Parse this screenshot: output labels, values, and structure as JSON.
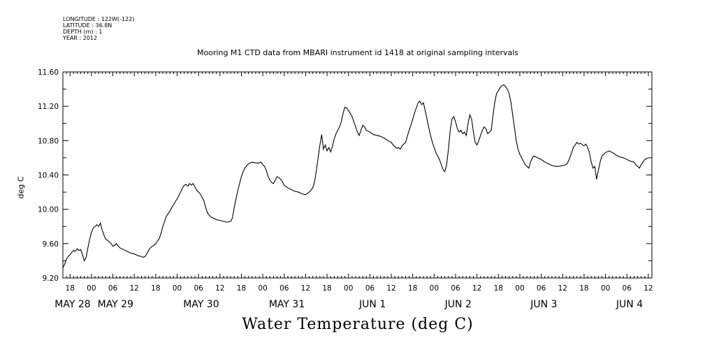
{
  "header": {
    "longitude": "LONGITUDE : 122W(-122)",
    "latitude": "LATITUDE : 36.8N",
    "depth": "DEPTH (m) : 1",
    "year": "YEAR : 2012"
  },
  "chart_data": {
    "type": "line",
    "title": "Mooring M1 CTD data from MBARI instrument id 1418 at original sampling intervals",
    "ylabel": "deg C",
    "xlabel": "Water Temperature (deg C)",
    "ylim": [
      9.2,
      11.6
    ],
    "xlim_hours": [
      0,
      165
    ],
    "yticks": [
      "9.20",
      "9.60",
      "10.00",
      "10.40",
      "10.80",
      "11.20",
      "11.60"
    ],
    "xticks": [
      {
        "h": 2,
        "label": "18"
      },
      {
        "h": 8,
        "label": "00"
      },
      {
        "h": 14,
        "label": "06"
      },
      {
        "h": 20,
        "label": "12"
      },
      {
        "h": 26,
        "label": "18"
      },
      {
        "h": 32,
        "label": "00"
      },
      {
        "h": 38,
        "label": "06"
      },
      {
        "h": 44,
        "label": "12"
      },
      {
        "h": 50,
        "label": "18"
      },
      {
        "h": 56,
        "label": "00"
      },
      {
        "h": 62,
        "label": "06"
      },
      {
        "h": 68,
        "label": "12"
      },
      {
        "h": 74,
        "label": "18"
      },
      {
        "h": 80,
        "label": "00"
      },
      {
        "h": 86,
        "label": "06"
      },
      {
        "h": 92,
        "label": "12"
      },
      {
        "h": 98,
        "label": "18"
      },
      {
        "h": 104,
        "label": "00"
      },
      {
        "h": 110,
        "label": "06"
      },
      {
        "h": 116,
        "label": "12"
      },
      {
        "h": 122,
        "label": "18"
      },
      {
        "h": 128,
        "label": "00"
      },
      {
        "h": 134,
        "label": "06"
      },
      {
        "h": 140,
        "label": "12"
      },
      {
        "h": 146,
        "label": "18"
      },
      {
        "h": 152,
        "label": "00"
      },
      {
        "h": 158,
        "label": "06"
      },
      {
        "h": 164,
        "label": "12"
      }
    ],
    "date_labels": [
      {
        "h": 0,
        "label": "MAY 28"
      },
      {
        "h": 12,
        "label": "MAY 29"
      },
      {
        "h": 36,
        "label": "MAY 30"
      },
      {
        "h": 60,
        "label": "MAY 31"
      },
      {
        "h": 84,
        "label": "JUN  1"
      },
      {
        "h": 108,
        "label": "JUN  2"
      },
      {
        "h": 132,
        "label": "JUN  3"
      },
      {
        "h": 156,
        "label": "JUN  4"
      }
    ],
    "series": [
      {
        "points": [
          [
            0,
            9.32
          ],
          [
            0.5,
            9.36
          ],
          [
            1,
            9.42
          ],
          [
            1.5,
            9.45
          ],
          [
            2,
            9.47
          ],
          [
            2.5,
            9.5
          ],
          [
            3,
            9.52
          ],
          [
            3.5,
            9.51
          ],
          [
            4,
            9.54
          ],
          [
            4.5,
            9.52
          ],
          [
            5,
            9.53
          ],
          [
            5.5,
            9.47
          ],
          [
            6,
            9.4
          ],
          [
            6.5,
            9.44
          ],
          [
            7,
            9.55
          ],
          [
            7.5,
            9.65
          ],
          [
            8,
            9.73
          ],
          [
            8.5,
            9.78
          ],
          [
            9,
            9.8
          ],
          [
            9.5,
            9.82
          ],
          [
            10,
            9.8
          ],
          [
            10.5,
            9.84
          ],
          [
            11,
            9.76
          ],
          [
            11.5,
            9.7
          ],
          [
            12,
            9.65
          ],
          [
            12.5,
            9.64
          ],
          [
            13,
            9.62
          ],
          [
            13.5,
            9.6
          ],
          [
            14,
            9.57
          ],
          [
            14.5,
            9.58
          ],
          [
            15,
            9.6
          ],
          [
            15.5,
            9.57
          ],
          [
            16,
            9.55
          ],
          [
            17,
            9.53
          ],
          [
            18,
            9.51
          ],
          [
            19,
            9.49
          ],
          [
            20,
            9.48
          ],
          [
            21,
            9.46
          ],
          [
            22,
            9.45
          ],
          [
            22.5,
            9.44
          ],
          [
            23,
            9.45
          ],
          [
            23.5,
            9.48
          ],
          [
            24,
            9.52
          ],
          [
            24.5,
            9.55
          ],
          [
            25,
            9.57
          ],
          [
            25.5,
            9.58
          ],
          [
            26,
            9.6
          ],
          [
            26.5,
            9.63
          ],
          [
            27,
            9.66
          ],
          [
            27.5,
            9.72
          ],
          [
            28,
            9.8
          ],
          [
            28.5,
            9.86
          ],
          [
            29,
            9.92
          ],
          [
            29.5,
            9.95
          ],
          [
            30,
            9.98
          ],
          [
            30.5,
            10.02
          ],
          [
            31,
            10.05
          ],
          [
            31.5,
            10.09
          ],
          [
            32,
            10.12
          ],
          [
            32.5,
            10.16
          ],
          [
            33,
            10.2
          ],
          [
            33.5,
            10.25
          ],
          [
            34,
            10.28
          ],
          [
            34.5,
            10.29
          ],
          [
            35,
            10.27
          ],
          [
            35.5,
            10.3
          ],
          [
            36,
            10.28
          ],
          [
            36.5,
            10.3
          ],
          [
            37,
            10.26
          ],
          [
            37.5,
            10.22
          ],
          [
            38,
            10.2
          ],
          [
            38.5,
            10.18
          ],
          [
            39,
            10.14
          ],
          [
            39.5,
            10.1
          ],
          [
            40,
            10.02
          ],
          [
            40.5,
            9.96
          ],
          [
            41,
            9.93
          ],
          [
            41.5,
            9.91
          ],
          [
            42,
            9.9
          ],
          [
            43,
            9.88
          ],
          [
            44,
            9.87
          ],
          [
            45,
            9.86
          ],
          [
            46,
            9.85
          ],
          [
            47,
            9.86
          ],
          [
            47.5,
            9.9
          ],
          [
            48,
            10.02
          ],
          [
            48.5,
            10.12
          ],
          [
            49,
            10.22
          ],
          [
            49.5,
            10.3
          ],
          [
            50,
            10.38
          ],
          [
            50.5,
            10.44
          ],
          [
            51,
            10.48
          ],
          [
            51.5,
            10.51
          ],
          [
            52,
            10.53
          ],
          [
            52.5,
            10.54
          ],
          [
            53,
            10.55
          ],
          [
            54,
            10.54
          ],
          [
            55,
            10.54
          ],
          [
            55.5,
            10.55
          ],
          [
            56,
            10.52
          ],
          [
            56.5,
            10.5
          ],
          [
            57,
            10.45
          ],
          [
            57.5,
            10.38
          ],
          [
            58,
            10.34
          ],
          [
            58.5,
            10.31
          ],
          [
            59,
            10.3
          ],
          [
            59.5,
            10.34
          ],
          [
            60,
            10.38
          ],
          [
            60.5,
            10.37
          ],
          [
            61,
            10.35
          ],
          [
            61.5,
            10.32
          ],
          [
            62,
            10.28
          ],
          [
            63,
            10.25
          ],
          [
            64,
            10.23
          ],
          [
            65,
            10.21
          ],
          [
            66,
            10.2
          ],
          [
            67,
            10.18
          ],
          [
            68,
            10.17
          ],
          [
            69,
            10.2
          ],
          [
            70,
            10.25
          ],
          [
            70.5,
            10.32
          ],
          [
            71,
            10.45
          ],
          [
            71.5,
            10.6
          ],
          [
            72,
            10.75
          ],
          [
            72.5,
            10.87
          ],
          [
            73,
            10.7
          ],
          [
            73.5,
            10.75
          ],
          [
            74,
            10.68
          ],
          [
            74.5,
            10.72
          ],
          [
            75,
            10.67
          ],
          [
            75.5,
            10.73
          ],
          [
            76,
            10.82
          ],
          [
            76.5,
            10.88
          ],
          [
            77,
            10.92
          ],
          [
            77.5,
            10.96
          ],
          [
            78,
            11.02
          ],
          [
            78.5,
            11.12
          ],
          [
            79,
            11.19
          ],
          [
            79.5,
            11.18
          ],
          [
            80,
            11.15
          ],
          [
            80.5,
            11.12
          ],
          [
            81,
            11.08
          ],
          [
            81.5,
            11.02
          ],
          [
            82,
            10.96
          ],
          [
            82.5,
            10.9
          ],
          [
            83,
            10.86
          ],
          [
            83.5,
            10.92
          ],
          [
            84,
            10.98
          ],
          [
            84.5,
            10.96
          ],
          [
            85,
            10.92
          ],
          [
            86,
            10.9
          ],
          [
            87,
            10.87
          ],
          [
            88,
            10.86
          ],
          [
            89,
            10.85
          ],
          [
            90,
            10.83
          ],
          [
            91,
            10.8
          ],
          [
            92,
            10.78
          ],
          [
            92.5,
            10.75
          ],
          [
            93,
            10.73
          ],
          [
            93.5,
            10.71
          ],
          [
            94,
            10.72
          ],
          [
            94.5,
            10.7
          ],
          [
            95,
            10.74
          ],
          [
            96,
            10.78
          ],
          [
            96.5,
            10.85
          ],
          [
            97,
            10.92
          ],
          [
            97.5,
            10.98
          ],
          [
            98,
            11.05
          ],
          [
            98.5,
            11.12
          ],
          [
            99,
            11.18
          ],
          [
            99.5,
            11.24
          ],
          [
            100,
            11.26
          ],
          [
            100.5,
            11.22
          ],
          [
            101,
            11.24
          ],
          [
            101.5,
            11.15
          ],
          [
            102,
            11.05
          ],
          [
            102.5,
            10.95
          ],
          [
            103,
            10.86
          ],
          [
            103.5,
            10.78
          ],
          [
            104,
            10.72
          ],
          [
            104.5,
            10.66
          ],
          [
            105,
            10.62
          ],
          [
            105.5,
            10.58
          ],
          [
            106,
            10.52
          ],
          [
            106.5,
            10.46
          ],
          [
            107,
            10.44
          ],
          [
            107.5,
            10.52
          ],
          [
            108,
            10.7
          ],
          [
            108.5,
            10.92
          ],
          [
            109,
            11.05
          ],
          [
            109.5,
            11.08
          ],
          [
            110,
            11.02
          ],
          [
            110.5,
            10.94
          ],
          [
            111,
            10.9
          ],
          [
            111.5,
            10.92
          ],
          [
            112,
            10.88
          ],
          [
            112.5,
            10.9
          ],
          [
            113,
            10.86
          ],
          [
            113.5,
            11.0
          ],
          [
            114,
            11.1
          ],
          [
            114.5,
            11.05
          ],
          [
            115,
            10.9
          ],
          [
            115.5,
            10.78
          ],
          [
            116,
            10.75
          ],
          [
            116.5,
            10.8
          ],
          [
            117,
            10.86
          ],
          [
            117.5,
            10.92
          ],
          [
            118,
            10.96
          ],
          [
            118.5,
            10.94
          ],
          [
            119,
            10.88
          ],
          [
            119.5,
            10.9
          ],
          [
            120,
            10.92
          ],
          [
            120.5,
            11.1
          ],
          [
            121,
            11.25
          ],
          [
            121.5,
            11.35
          ],
          [
            122,
            11.38
          ],
          [
            122.5,
            11.42
          ],
          [
            123,
            11.44
          ],
          [
            123.5,
            11.45
          ],
          [
            124,
            11.43
          ],
          [
            124.5,
            11.4
          ],
          [
            125,
            11.35
          ],
          [
            125.5,
            11.25
          ],
          [
            126,
            11.1
          ],
          [
            126.5,
            10.95
          ],
          [
            127,
            10.8
          ],
          [
            127.5,
            10.7
          ],
          [
            128,
            10.64
          ],
          [
            128.5,
            10.6
          ],
          [
            129,
            10.56
          ],
          [
            129.5,
            10.52
          ],
          [
            130,
            10.5
          ],
          [
            130.5,
            10.48
          ],
          [
            131,
            10.55
          ],
          [
            131.5,
            10.6
          ],
          [
            132,
            10.62
          ],
          [
            133,
            10.6
          ],
          [
            134,
            10.58
          ],
          [
            135,
            10.55
          ],
          [
            136,
            10.53
          ],
          [
            137,
            10.51
          ],
          [
            138,
            10.5
          ],
          [
            139,
            10.5
          ],
          [
            140,
            10.51
          ],
          [
            141,
            10.52
          ],
          [
            141.5,
            10.55
          ],
          [
            142,
            10.6
          ],
          [
            142.5,
            10.66
          ],
          [
            143,
            10.72
          ],
          [
            143.5,
            10.75
          ],
          [
            144,
            10.78
          ],
          [
            144.5,
            10.76
          ],
          [
            145,
            10.77
          ],
          [
            145.5,
            10.75
          ],
          [
            146,
            10.74
          ],
          [
            146.5,
            10.76
          ],
          [
            147,
            10.72
          ],
          [
            147.5,
            10.66
          ],
          [
            148,
            10.55
          ],
          [
            148.5,
            10.48
          ],
          [
            149,
            10.5
          ],
          [
            149.5,
            10.35
          ],
          [
            150,
            10.45
          ],
          [
            150.5,
            10.55
          ],
          [
            151,
            10.62
          ],
          [
            151.5,
            10.64
          ],
          [
            152,
            10.66
          ],
          [
            152.5,
            10.67
          ],
          [
            153,
            10.68
          ],
          [
            154,
            10.66
          ],
          [
            155,
            10.63
          ],
          [
            156,
            10.61
          ],
          [
            157,
            10.6
          ],
          [
            158,
            10.58
          ],
          [
            159,
            10.56
          ],
          [
            160,
            10.55
          ],
          [
            160.5,
            10.52
          ],
          [
            161,
            10.5
          ],
          [
            161.5,
            10.48
          ],
          [
            162,
            10.52
          ],
          [
            162.5,
            10.55
          ],
          [
            163,
            10.58
          ],
          [
            164,
            10.6
          ]
        ]
      }
    ]
  }
}
